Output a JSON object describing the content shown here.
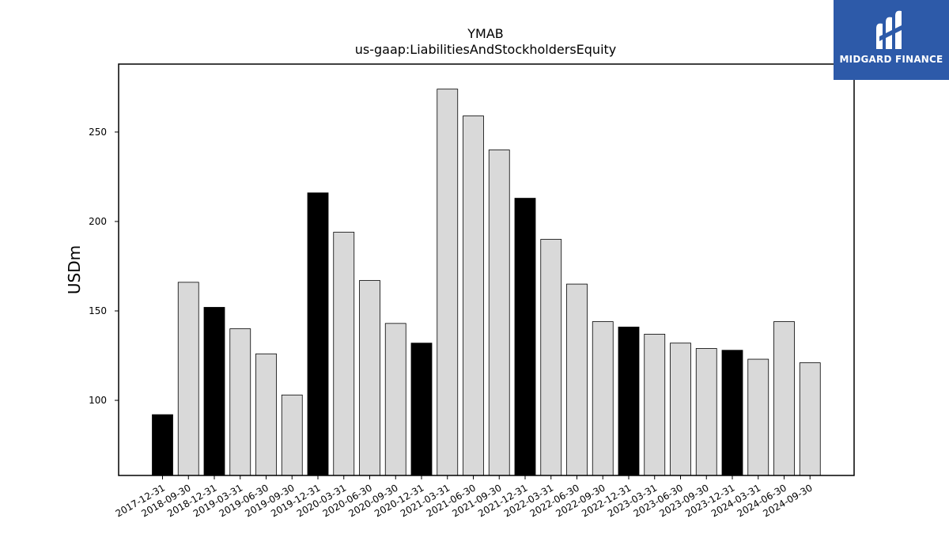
{
  "chart_data": {
    "type": "bar",
    "title": "YMAB",
    "subtitle": "us-gaap:LiabilitiesAndStockholdersEquity",
    "xlabel": "",
    "ylabel": "USDm",
    "ylim": [
      58,
      288
    ],
    "yticks": [
      100,
      150,
      200,
      250
    ],
    "grid": false,
    "categories": [
      "2017-12-31",
      "2018-09-30",
      "2018-12-31",
      "2019-03-31",
      "2019-06-30",
      "2019-09-30",
      "2019-12-31",
      "2020-03-31",
      "2020-06-30",
      "2020-09-30",
      "2020-12-31",
      "2021-03-31",
      "2021-06-30",
      "2021-09-30",
      "2021-12-31",
      "2022-03-31",
      "2022-06-30",
      "2022-09-30",
      "2022-12-31",
      "2023-03-31",
      "2023-06-30",
      "2023-09-30",
      "2023-12-31",
      "2024-03-31",
      "2024-06-30",
      "2024-09-30"
    ],
    "values": [
      92,
      166,
      152,
      140,
      126,
      103,
      216,
      194,
      167,
      143,
      132,
      274,
      259,
      240,
      213,
      190,
      165,
      144,
      141,
      137,
      132,
      129,
      128,
      123,
      144,
      121
    ],
    "colors": {
      "year_end": "#000000",
      "quarter": "#d9d9d9",
      "edge": "#000000"
    }
  },
  "logo": {
    "name": "MIDGARD FINANCE"
  }
}
